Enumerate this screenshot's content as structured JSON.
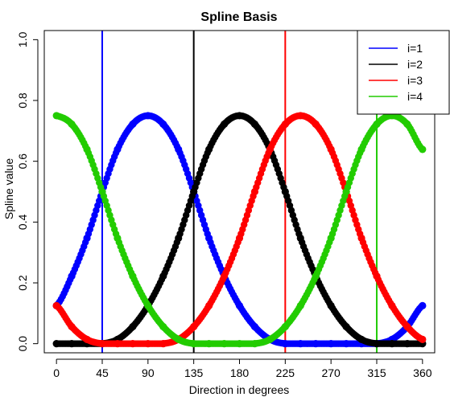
{
  "chart_data": {
    "type": "scatter",
    "title": "Spline Basis",
    "xlabel": "Direction in degrees",
    "ylabel": "Spline value",
    "xlim": [
      -12,
      372
    ],
    "ylim": [
      -0.03,
      1.03
    ],
    "x_ticks": [
      0,
      45,
      90,
      135,
      180,
      225,
      270,
      315,
      360
    ],
    "x_tick_labels": [
      "0",
      "45",
      "90",
      "135",
      "180",
      "225",
      "270",
      "315",
      "360"
    ],
    "y_ticks": [
      0.0,
      0.2,
      0.4,
      0.6,
      0.8,
      1.0
    ],
    "y_tick_labels": [
      "0.0",
      "0.2",
      "0.4",
      "0.6",
      "0.8",
      "1.0"
    ],
    "grid": false,
    "legend_position": "top-right",
    "x": [
      0,
      15,
      30,
      45,
      60,
      75,
      90,
      105,
      120,
      135,
      150,
      165,
      180,
      195,
      210,
      225,
      240,
      255,
      270,
      285,
      300,
      315,
      330,
      345,
      360
    ],
    "series": [
      {
        "name": "i=1",
        "color": "#0000ff",
        "values": [
          0.125,
          0.222,
          0.347,
          0.5,
          0.639,
          0.722,
          0.75,
          0.722,
          0.639,
          0.5,
          0.347,
          0.222,
          0.125,
          0.056,
          0.014,
          0.0,
          0.0,
          0.0,
          0.0,
          0.0,
          0.0,
          0.0,
          0.014,
          0.056,
          0.125
        ]
      },
      {
        "name": "i=2",
        "color": "#000000",
        "values": [
          0.0,
          0.0,
          0.0,
          0.0,
          0.014,
          0.056,
          0.125,
          0.222,
          0.347,
          0.5,
          0.639,
          0.722,
          0.75,
          0.722,
          0.639,
          0.5,
          0.347,
          0.222,
          0.125,
          0.056,
          0.014,
          0.0,
          0.0,
          0.0,
          0.0
        ]
      },
      {
        "name": "i=3",
        "color": "#ff0000",
        "values": [
          0.125,
          0.056,
          0.014,
          0.0,
          0.0,
          0.0,
          0.0,
          0.0,
          0.014,
          0.056,
          0.125,
          0.222,
          0.347,
          0.5,
          0.639,
          0.722,
          0.75,
          0.722,
          0.639,
          0.5,
          0.347,
          0.222,
          0.125,
          0.056,
          0.014
        ]
      },
      {
        "name": "i=4",
        "color": "#22cc00",
        "values": [
          0.75,
          0.722,
          0.639,
          0.5,
          0.347,
          0.222,
          0.125,
          0.056,
          0.014,
          0.0,
          0.0,
          0.0,
          0.0,
          0.0,
          0.014,
          0.056,
          0.125,
          0.222,
          0.347,
          0.5,
          0.639,
          0.722,
          0.75,
          0.722,
          0.639
        ]
      }
    ],
    "vertical_lines": [
      {
        "x": 45,
        "color": "#0000ff"
      },
      {
        "x": 135,
        "color": "#000000"
      },
      {
        "x": 225,
        "color": "#ff0000"
      },
      {
        "x": 315,
        "color": "#22cc00"
      }
    ]
  }
}
